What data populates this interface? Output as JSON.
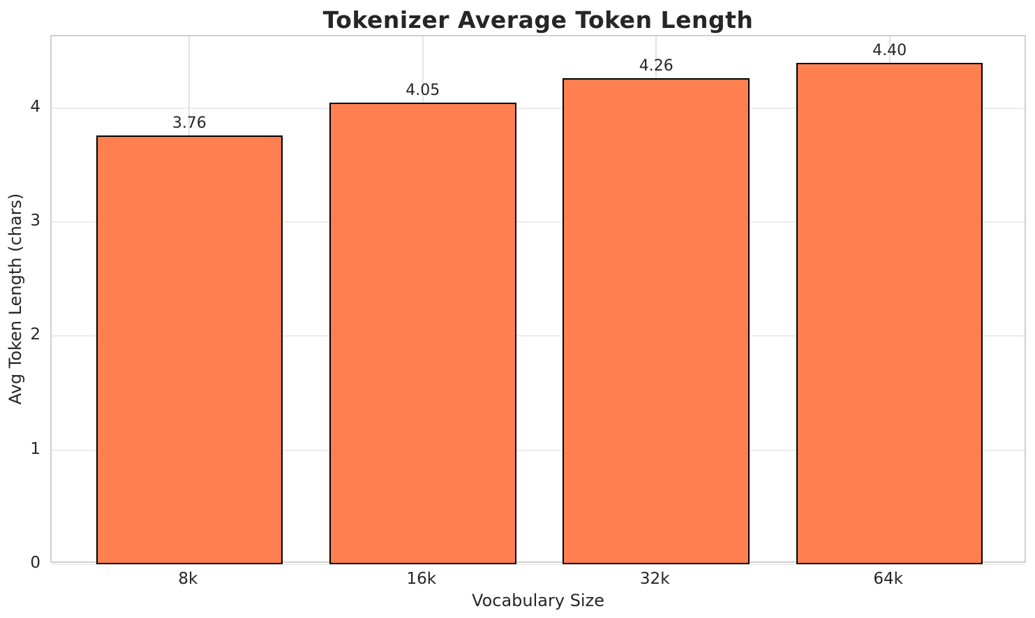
{
  "chart_data": {
    "type": "bar",
    "title": "Tokenizer Average Token Length",
    "xlabel": "Vocabulary Size",
    "ylabel": "Avg Token Length (chars)",
    "categories": [
      "8k",
      "16k",
      "32k",
      "64k"
    ],
    "values": [
      3.76,
      4.05,
      4.26,
      4.4
    ],
    "value_labels": [
      "3.76",
      "4.05",
      "4.26",
      "4.40"
    ],
    "yticks": [
      0,
      1,
      2,
      3,
      4
    ],
    "ylim": [
      0,
      4.63
    ],
    "grid": "both",
    "legend": "none",
    "bar_color": "#FF7F50",
    "bar_edge_color": "#000000",
    "grid_color": "#ececec",
    "spine_color": "#d0d0d0",
    "text_color": "#262626",
    "background_color": "#ffffff"
  }
}
